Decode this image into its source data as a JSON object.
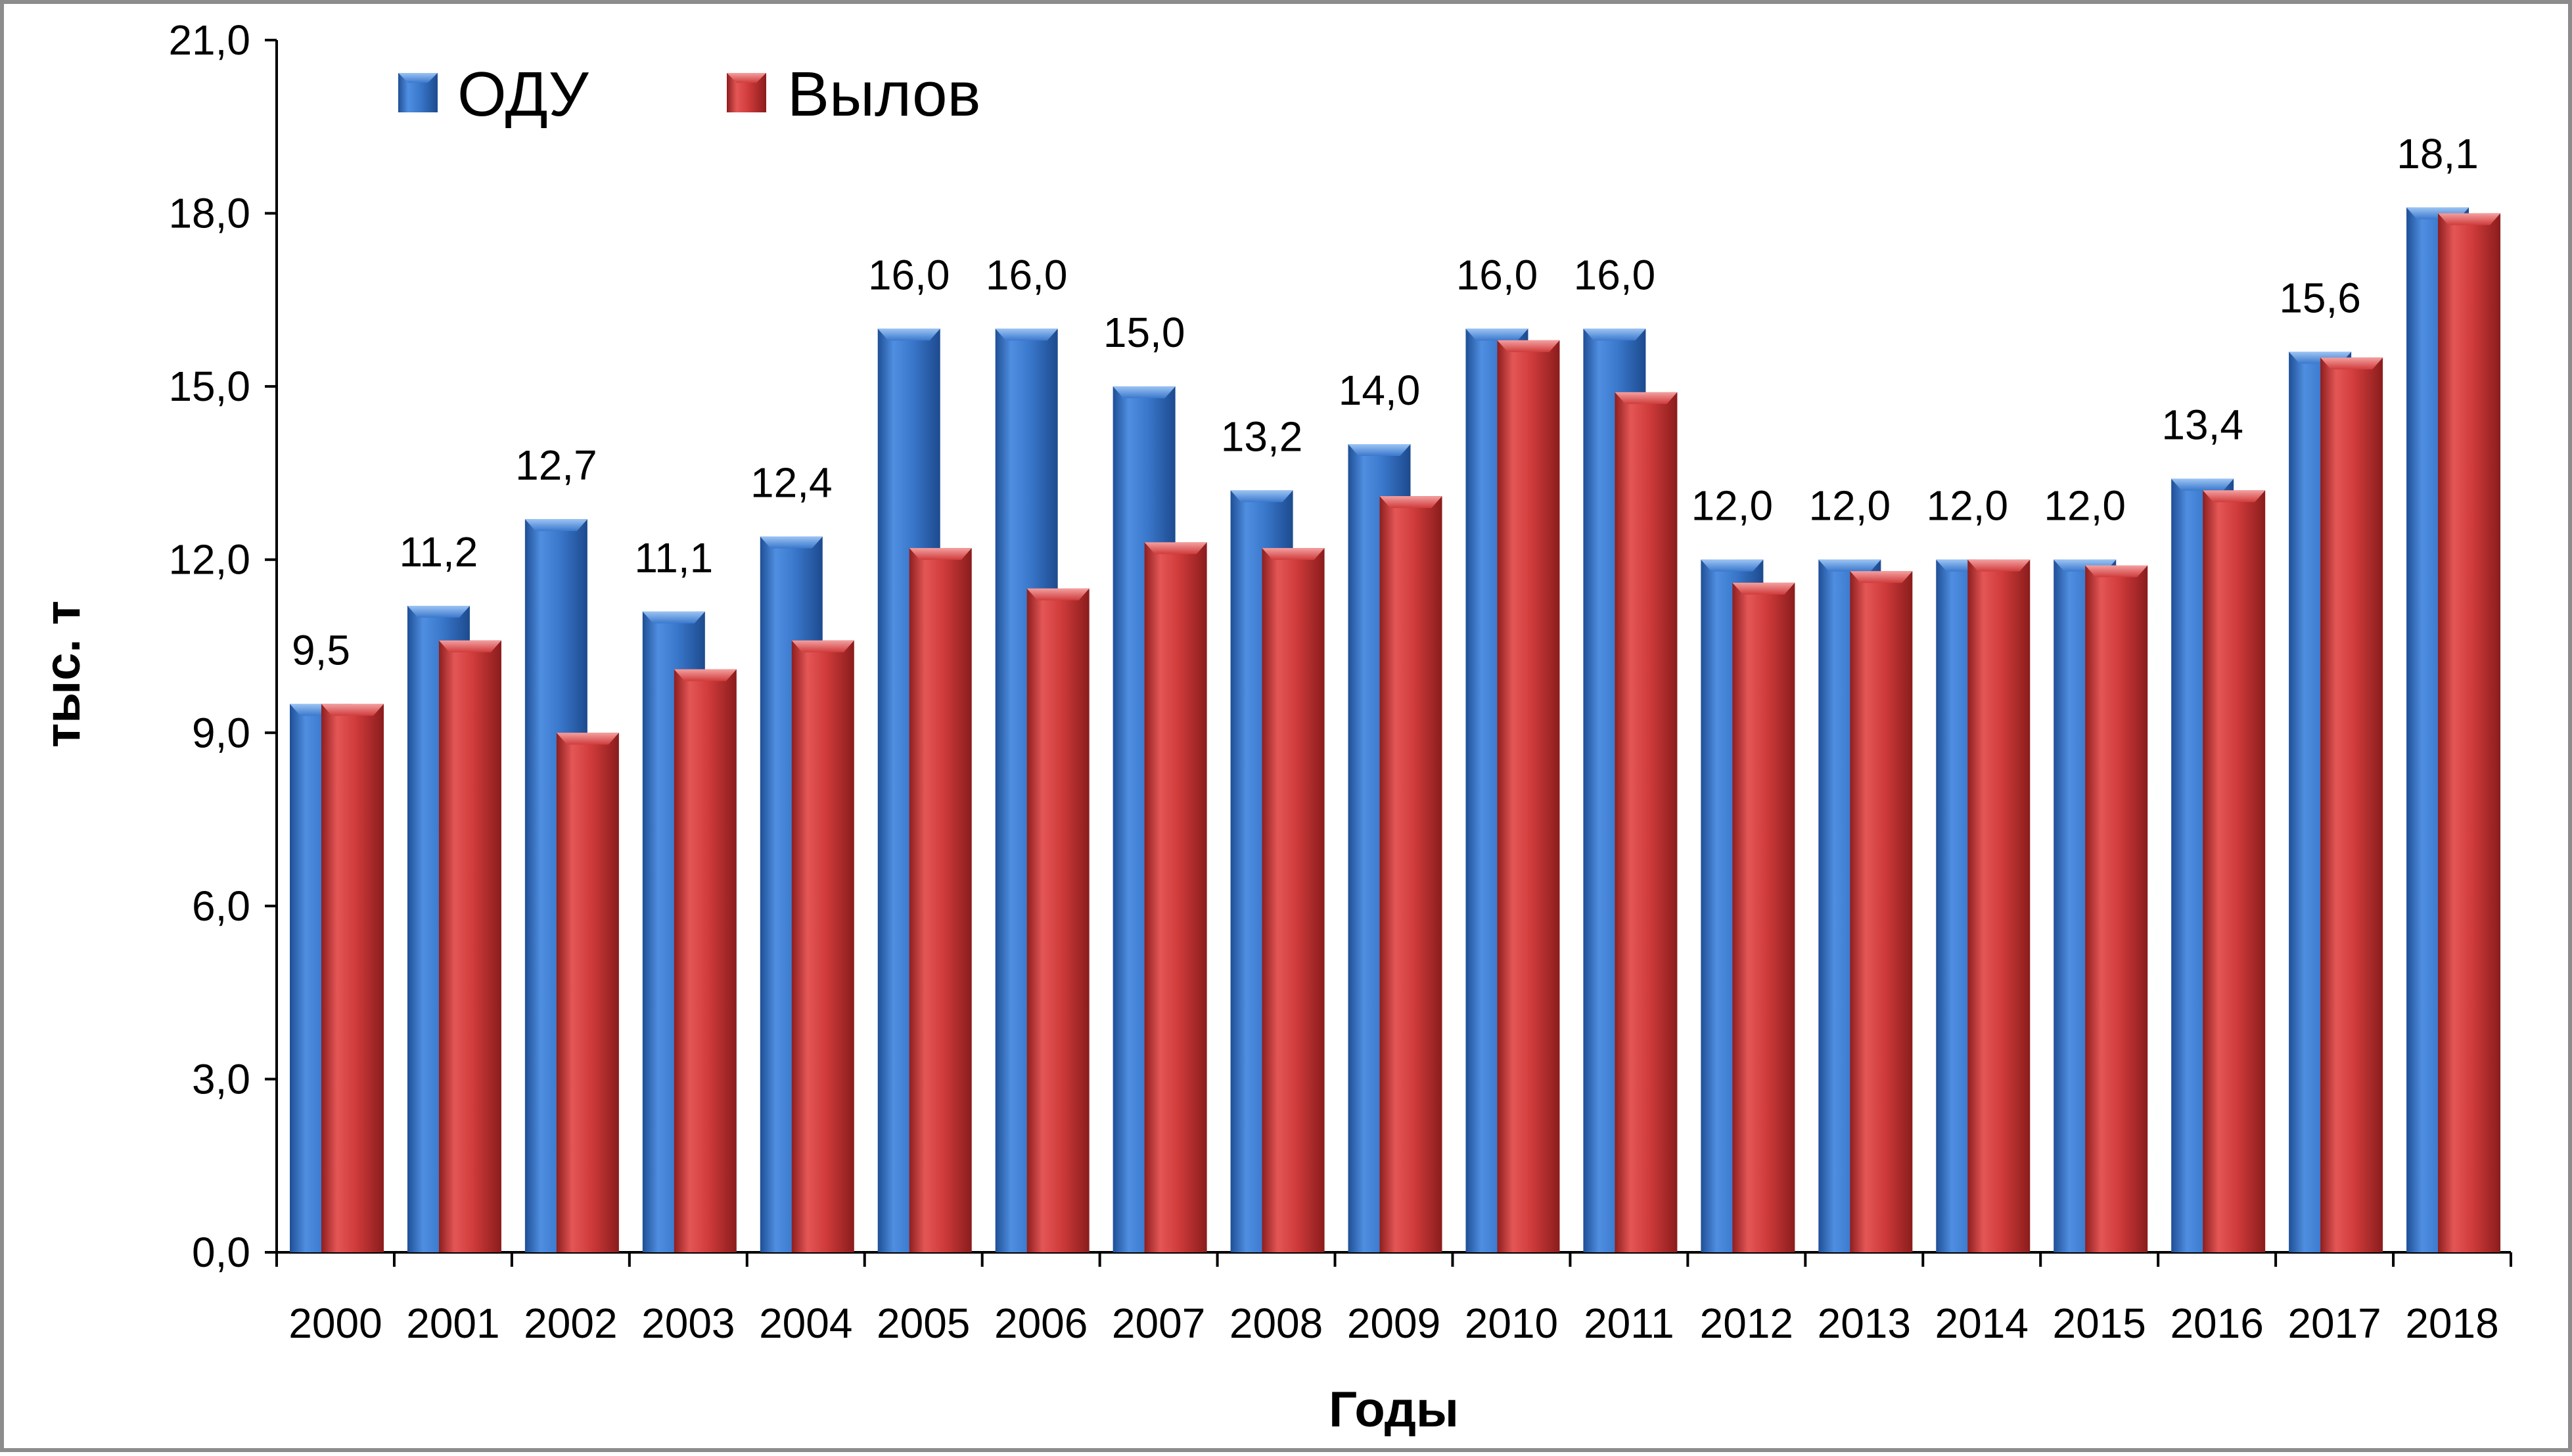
{
  "chart_data": {
    "type": "bar",
    "xlabel": "Годы",
    "ylabel": "тыс. т",
    "ylim": [
      0,
      21
    ],
    "yticks": [
      "0,0",
      "3,0",
      "6,0",
      "9,0",
      "12,0",
      "15,0",
      "18,0",
      "21,0"
    ],
    "grid": false,
    "legend_position": "top-left",
    "categories": [
      "2000",
      "2001",
      "2002",
      "2003",
      "2004",
      "2005",
      "2006",
      "2007",
      "2008",
      "2009",
      "2010",
      "2011",
      "2012",
      "2013",
      "2014",
      "2015",
      "2016",
      "2017",
      "2018"
    ],
    "series": [
      {
        "name": "ОДУ",
        "color": "#3c78c8",
        "values": [
          9.5,
          11.2,
          12.7,
          11.1,
          12.4,
          16.0,
          16.0,
          15.0,
          13.2,
          14.0,
          16.0,
          16.0,
          12.0,
          12.0,
          12.0,
          12.0,
          13.4,
          15.6,
          18.1
        ],
        "data_labels": [
          "9,5",
          "11,2",
          "12,7",
          "11,1",
          "12,4",
          "16,0",
          "16,0",
          "15,0",
          "13,2",
          "14,0",
          "16,0",
          "16,0",
          "12,0",
          "12,0",
          "12,0",
          "12,0",
          "13,4",
          "15,6",
          "18,1"
        ]
      },
      {
        "name": "Вылов",
        "color": "#d23c3c",
        "values": [
          9.5,
          10.6,
          9.0,
          10.1,
          10.6,
          12.2,
          11.5,
          12.3,
          12.2,
          13.1,
          15.8,
          14.9,
          11.6,
          11.8,
          12.0,
          11.9,
          13.2,
          15.5,
          18.0
        ]
      }
    ]
  }
}
